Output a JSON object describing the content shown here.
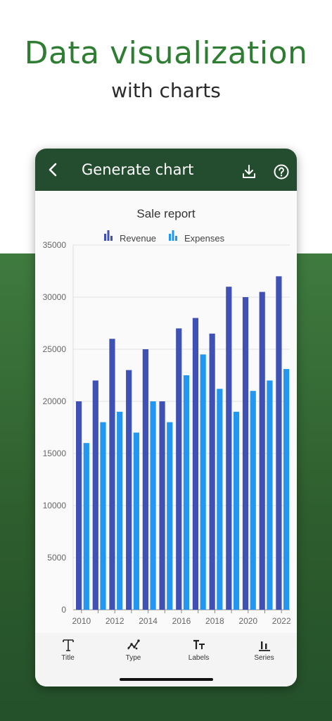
{
  "hero": {
    "title": "Data visualization",
    "subtitle": "with charts"
  },
  "appbar": {
    "title": "Generate chart",
    "back_icon": "arrow-back-icon",
    "download_icon": "download-icon",
    "help_icon": "help-circle-icon"
  },
  "toolbar": {
    "items": [
      {
        "label": "Title",
        "icon": "title-text-icon"
      },
      {
        "label": "Type",
        "icon": "chart-type-icon"
      },
      {
        "label": "Labels",
        "icon": "labels-icon"
      },
      {
        "label": "Series",
        "icon": "series-icon"
      }
    ]
  },
  "colors": {
    "appbar": "#244d30",
    "revenue": "#3f51b5",
    "expenses": "#2196f3",
    "hero_title": "#2e7d32"
  },
  "chart_data": {
    "type": "bar",
    "title": "Sale report",
    "legend_position": "top-center",
    "grid": true,
    "ylim": [
      0,
      35000
    ],
    "y_ticks": [
      0,
      5000,
      10000,
      15000,
      20000,
      25000,
      30000,
      35000
    ],
    "x_tick_labels": [
      "2010",
      "2012",
      "2014",
      "2016",
      "2018",
      "2020",
      "2022"
    ],
    "categories": [
      "2010",
      "2011",
      "2012",
      "2013",
      "2014",
      "2015",
      "2016",
      "2017",
      "2018",
      "2019",
      "2020",
      "2021",
      "2022"
    ],
    "series": [
      {
        "name": "Revenue",
        "color": "#3f51b5",
        "values": [
          20000,
          22000,
          26000,
          23000,
          25000,
          20000,
          27000,
          28000,
          26500,
          31000,
          30000,
          30500,
          32000
        ]
      },
      {
        "name": "Expenses",
        "color": "#2196f3",
        "values": [
          16000,
          18000,
          19000,
          17000,
          20000,
          18000,
          22500,
          24500,
          21200,
          19000,
          21000,
          22000,
          23100
        ]
      }
    ]
  }
}
